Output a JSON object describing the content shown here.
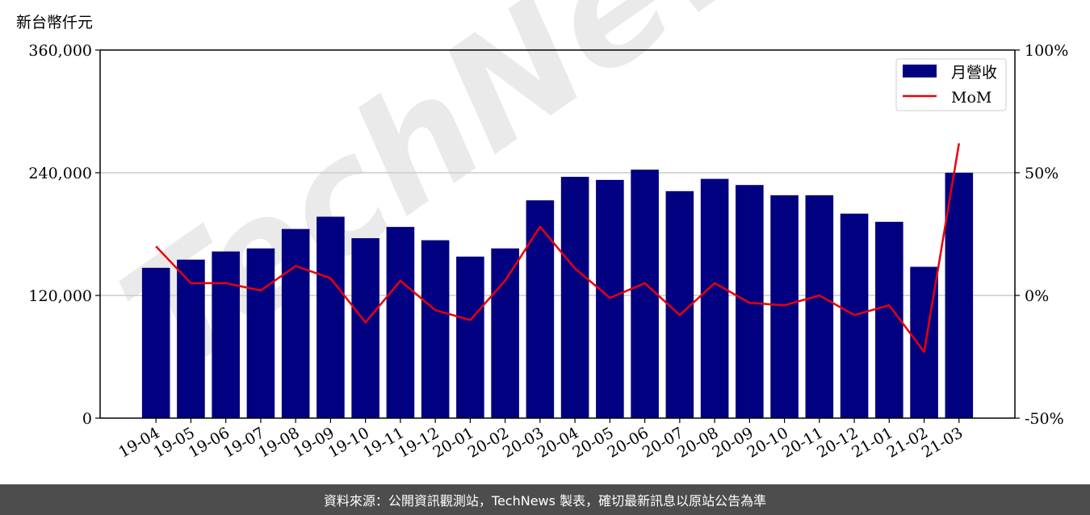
{
  "chart_data": {
    "type": "bar",
    "unit_label": "新台幣仟元",
    "categories": [
      "19-04",
      "19-05",
      "19-06",
      "19-07",
      "19-08",
      "19-09",
      "19-10",
      "19-11",
      "19-12",
      "20-01",
      "20-02",
      "20-03",
      "20-04",
      "20-05",
      "20-06",
      "20-07",
      "20-08",
      "20-09",
      "20-10",
      "20-11",
      "20-12",
      "21-01",
      "21-02",
      "21-03"
    ],
    "series": [
      {
        "name": "月營收",
        "axis": "left",
        "kind": "bar",
        "color": "#000080",
        "values": [
          147000,
          155000,
          163000,
          166000,
          185000,
          197000,
          176000,
          187000,
          174000,
          158000,
          166000,
          213000,
          236000,
          233000,
          243000,
          222000,
          234000,
          228000,
          218000,
          218000,
          200000,
          192000,
          148000,
          240000
        ]
      },
      {
        "name": "MoM",
        "axis": "right",
        "kind": "line",
        "color": "#e8000b",
        "values": [
          20,
          5,
          5,
          2,
          12,
          7,
          -11,
          6,
          -6,
          -10,
          6,
          28,
          11,
          -1,
          5,
          -8,
          5,
          -3,
          -4,
          0,
          -8,
          -4,
          -23,
          62
        ]
      }
    ],
    "y_left": {
      "min": 0,
      "max": 360000,
      "ticks": [
        "0",
        "120,000",
        "240,000",
        "360,000"
      ],
      "tick_values": [
        0,
        120000,
        240000,
        360000
      ]
    },
    "y_right": {
      "min": -50,
      "max": 100,
      "ticks": [
        "-50%",
        "0%",
        "50%",
        "100%"
      ],
      "tick_values": [
        -50,
        0,
        50,
        100
      ]
    },
    "grid": "horizontal",
    "legend_position": "top-right"
  },
  "watermark": "TechNews",
  "footer": "資料來源：公開資訊觀測站，TechNews 製表，確切最新訊息以原站公告為準"
}
